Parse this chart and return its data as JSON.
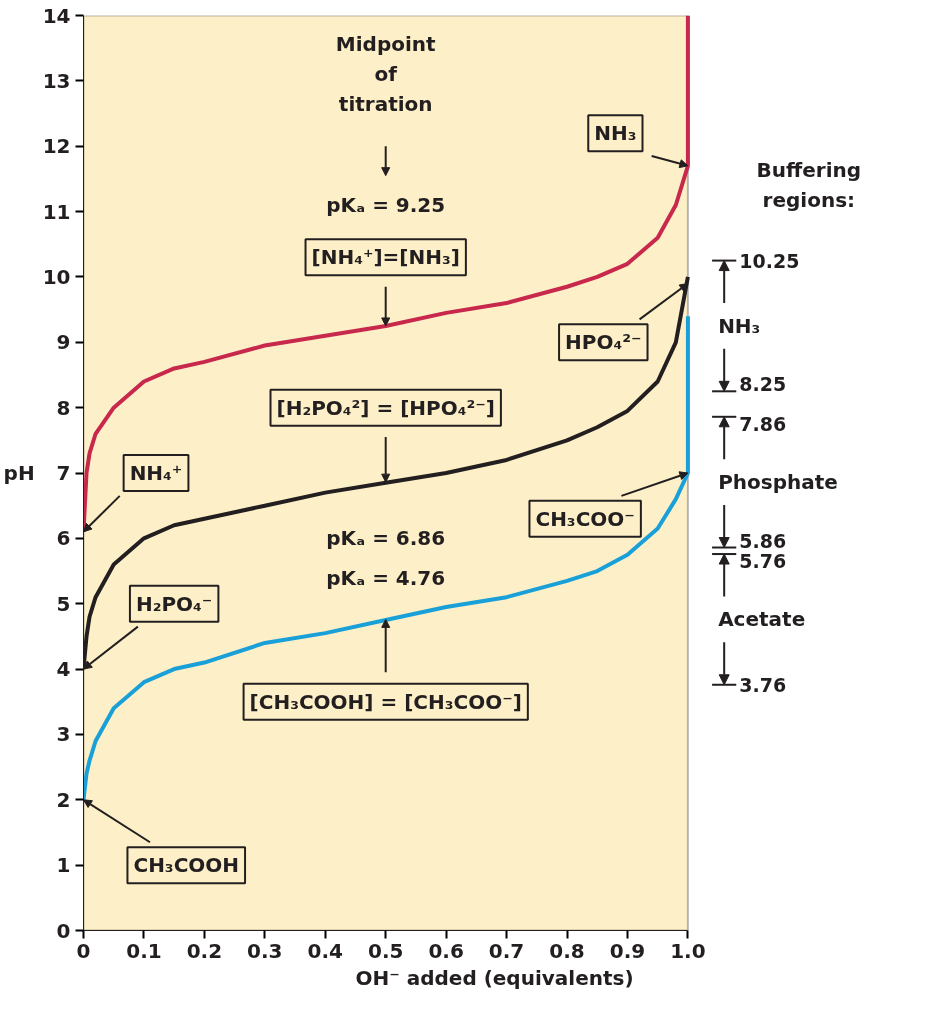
{
  "chart_data": {
    "type": "line",
    "xlabel": "OH⁻ added (equivalents)",
    "ylabel": "pH",
    "xlim": [
      0,
      1
    ],
    "ylim": [
      0,
      14
    ],
    "xticks": [
      0,
      0.1,
      0.2,
      0.3,
      0.4,
      0.5,
      0.6,
      0.7,
      0.8,
      0.9,
      {
        "value": 1,
        "label": "1.0"
      }
    ],
    "yticks": [
      0,
      1,
      2,
      3,
      4,
      5,
      6,
      7,
      8,
      9,
      10,
      11,
      12,
      13,
      14
    ],
    "y2lim": [
      0,
      14
    ],
    "y2ticks": [
      3.76,
      5.76,
      5.86,
      7.86,
      8.25,
      10.25
    ],
    "grid": false,
    "marker": "none",
    "line_style": "solid",
    "series": [
      {
        "color": "#c8284b",
        "x": [
          0,
          0.005,
          0.01,
          0.02,
          0.05,
          0.1,
          0.15,
          0.2,
          0.3,
          0.4,
          0.5,
          0.6,
          0.7,
          0.8,
          0.85,
          0.9,
          0.95,
          0.98,
          1.0,
          1.0
        ],
        "values": [
          6.1,
          7.0,
          7.3,
          7.6,
          8.0,
          8.4,
          8.6,
          8.7,
          8.95,
          9.1,
          9.25,
          9.45,
          9.6,
          9.85,
          10.0,
          10.2,
          10.6,
          11.1,
          11.7,
          14
        ]
      },
      {
        "color": "#231f20",
        "x": [
          0,
          0.005,
          0.01,
          0.02,
          0.05,
          0.1,
          0.15,
          0.2,
          0.3,
          0.4,
          0.5,
          0.6,
          0.7,
          0.8,
          0.85,
          0.9,
          0.95,
          0.98,
          1.0
        ],
        "values": [
          4.0,
          4.5,
          4.8,
          5.1,
          5.6,
          6.0,
          6.2,
          6.3,
          6.5,
          6.7,
          6.85,
          7.0,
          7.2,
          7.5,
          7.7,
          7.95,
          8.4,
          9.0,
          10.0
        ]
      },
      {
        "color": "#1aa0d8",
        "x": [
          0,
          0.005,
          0.01,
          0.02,
          0.05,
          0.1,
          0.15,
          0.2,
          0.3,
          0.4,
          0.5,
          0.6,
          0.7,
          0.8,
          0.85,
          0.9,
          0.95,
          0.98,
          1.0,
          1.0
        ],
        "values": [
          2.0,
          2.4,
          2.6,
          2.9,
          3.4,
          3.8,
          4.0,
          4.1,
          4.4,
          4.55,
          4.75,
          4.95,
          5.1,
          5.35,
          5.5,
          5.75,
          6.15,
          6.6,
          7.0,
          9.4
        ]
      }
    ],
    "annotations": [
      "Midpoint\nof\ntitration",
      "pKₐ = 9.25",
      {
        "text": "[NH₄⁺]=[NH₃]",
        "x": 0.5,
        "y": 9.25
      },
      {
        "text": "[H₂PO₄²] = [HPO₄²⁻]",
        "x": 0.5,
        "y": 6.86
      },
      "pKₐ = 6.86",
      "pKₐ = 4.76",
      {
        "text": "[CH₃COOH] = [CH₃COO⁻]",
        "x": 0.5,
        "y": 4.76
      },
      {
        "text": "NH₃",
        "x": 1.0,
        "y": 11.7
      },
      {
        "text": "HPO₄²⁻",
        "x": 1.0,
        "y": 9.9
      },
      {
        "text": "NH₄⁺",
        "x": 0,
        "y": 6.1
      },
      {
        "text": "H₂PO₄⁻",
        "x": 0,
        "y": 4.0
      },
      {
        "text": "CH₃COO⁻",
        "x": 1.0,
        "y": 7.0
      },
      {
        "text": "CH₃COOH",
        "x": 0,
        "y": 2.0
      },
      "Buffering\nregions:",
      "NH₃",
      "Phosphate",
      "Acetate"
    ]
  }
}
